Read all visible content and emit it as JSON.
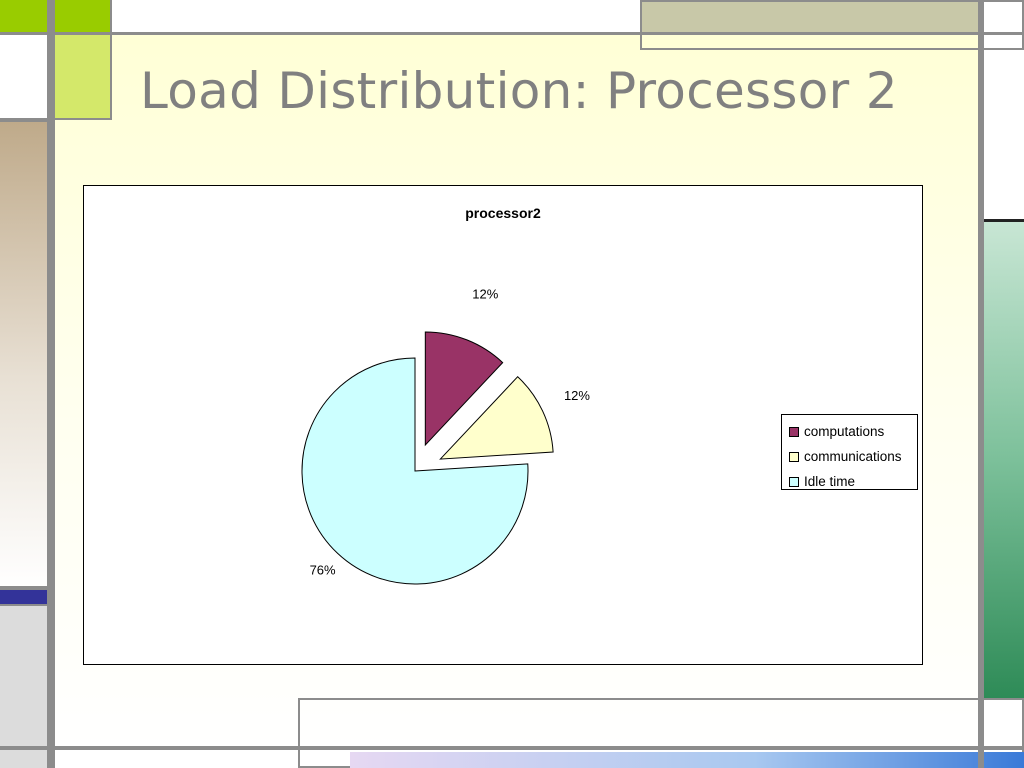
{
  "slide": {
    "title": "Load Distribution: Processor 2"
  },
  "colors": {
    "computations": "#993366",
    "communications": "#ffffcc",
    "idle": "#ccffff"
  },
  "chart_data": {
    "type": "pie",
    "title": "processor2",
    "labels": [
      "computations",
      "communications",
      "Idle time"
    ],
    "values": [
      12,
      12,
      76
    ],
    "data_labels": [
      "12%",
      "12%",
      "76%"
    ],
    "exploded": true,
    "legend_position": "right"
  }
}
